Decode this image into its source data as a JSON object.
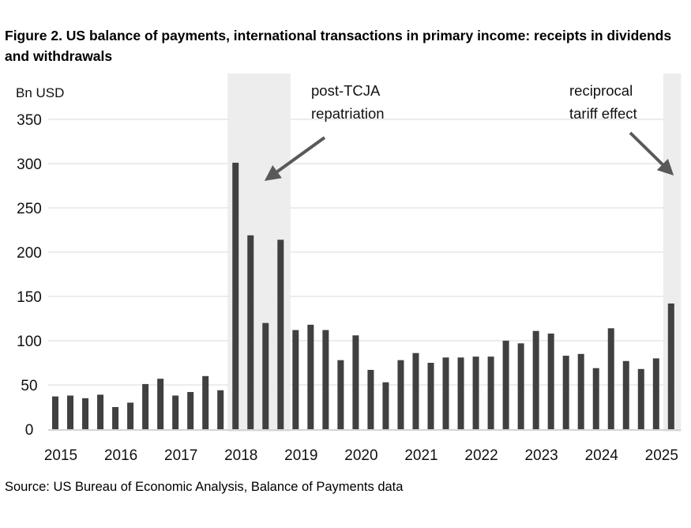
{
  "chart_data": {
    "type": "bar",
    "title": "Figure 2. US balance of payments, international transactions in primary income: receipts in dividends and withdrawals",
    "ylabel": "Bn USD",
    "xlabel": "",
    "ylim": [
      0,
      350
    ],
    "yticks": [
      0,
      50,
      100,
      150,
      200,
      250,
      300,
      350
    ],
    "xtick_labels": [
      "2015",
      "2016",
      "2017",
      "2018",
      "2019",
      "2020",
      "2021",
      "2022",
      "2023",
      "2024",
      "2025"
    ],
    "grid": true,
    "frequency": "quarterly",
    "start": "2015 Q1",
    "values": [
      37,
      38,
      35,
      39,
      25,
      30,
      51,
      57,
      38,
      42,
      60,
      44,
      301,
      219,
      120,
      214,
      112,
      118,
      112,
      78,
      106,
      67,
      53,
      78,
      86,
      75,
      81,
      81,
      82,
      82,
      100,
      97,
      111,
      108,
      83,
      85,
      69,
      114,
      77,
      68,
      80,
      142
    ],
    "bar_color": "#404040",
    "shade_color": "#ededed",
    "shaded_periods": [
      {
        "from": "2018 Q1",
        "to": "2018 Q4",
        "annotation": "post-TCJA repatriation",
        "lines": [
          "post-TCJA",
          "repatriation"
        ]
      },
      {
        "from": "2025 Q2",
        "to": "2025 Q2",
        "annotation": "reciprocal tariff effect",
        "lines": [
          "reciprocal",
          "tariff effect"
        ]
      }
    ],
    "source": "Source: US Bureau of Economic Analysis, Balance of Payments data"
  }
}
